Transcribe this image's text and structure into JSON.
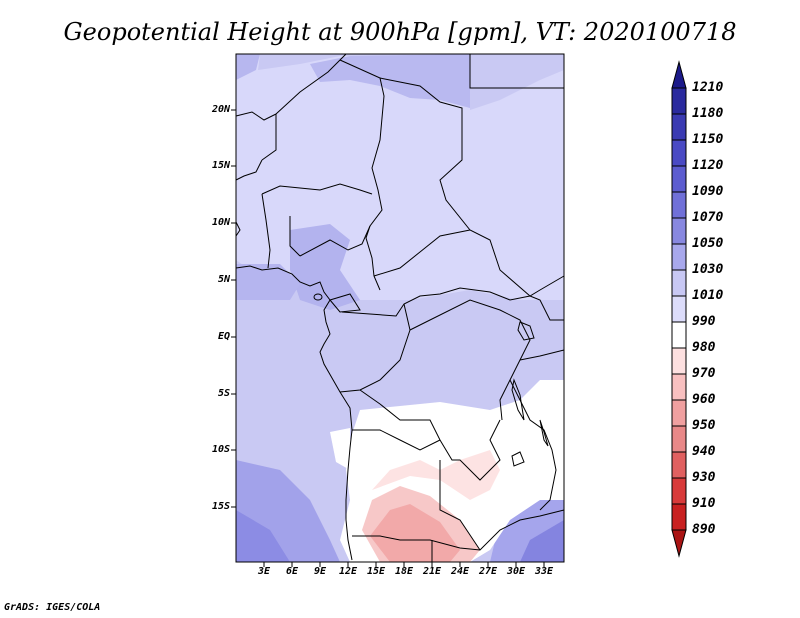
{
  "title": "Geopotential Height at 900hPa [gpm], VT: 2020100718",
  "footer": "GrADS: IGES/COLA",
  "map": {
    "lat_labels": [
      "20N",
      "15N",
      "10N",
      "5N",
      "EQ",
      "5S",
      "10S",
      "15S"
    ],
    "lon_labels": [
      "3E",
      "6E",
      "9E",
      "12E",
      "15E",
      "18E",
      "21E",
      "24E",
      "27E",
      "30E",
      "33E"
    ]
  },
  "colorbar": {
    "labels": [
      "1210",
      "1180",
      "1150",
      "1120",
      "1090",
      "1070",
      "1050",
      "1030",
      "1010",
      "990",
      "980",
      "970",
      "960",
      "950",
      "940",
      "930",
      "910",
      "890"
    ],
    "colors": [
      "#1c1a8a",
      "#2a2a9e",
      "#3a3ab2",
      "#4a4ac4",
      "#5c5ccf",
      "#7070d8",
      "#8888e0",
      "#a8a8ec",
      "#c8c8f4",
      "#dcdcfa",
      "#ffffff",
      "#fde0e0",
      "#f8c0c0",
      "#f0a0a0",
      "#e88888",
      "#e06060",
      "#d83a3a",
      "#c82020",
      "#aa1414"
    ]
  }
}
